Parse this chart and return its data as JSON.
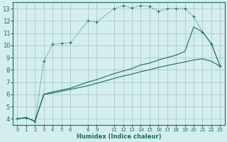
{
  "xlabel": "Humidex (Indice chaleur)",
  "bg_color": "#d4eded",
  "grid_color": "#aacaca",
  "line_color": "#1a6b6b",
  "xlim": [
    -0.5,
    23.5
  ],
  "ylim": [
    3.5,
    13.5
  ],
  "xticks": [
    0,
    1,
    2,
    3,
    4,
    5,
    6,
    8,
    9,
    11,
    12,
    13,
    14,
    15,
    16,
    17,
    18,
    19,
    20,
    21,
    22,
    23
  ],
  "yticks": [
    4,
    5,
    6,
    7,
    8,
    9,
    10,
    11,
    12,
    13
  ],
  "series1_x": [
    0,
    1,
    2,
    3,
    4,
    5,
    6,
    8,
    9,
    11,
    12,
    13,
    14,
    15,
    16,
    17,
    18,
    19,
    20,
    21,
    22,
    23
  ],
  "series1_y": [
    4.0,
    4.1,
    3.8,
    8.7,
    10.1,
    10.15,
    10.2,
    12.0,
    11.9,
    13.0,
    13.25,
    13.05,
    13.25,
    13.2,
    12.75,
    13.0,
    13.0,
    13.0,
    12.35,
    11.1,
    10.1,
    8.3
  ],
  "series2_x": [
    0,
    1,
    2,
    3,
    4,
    5,
    6,
    8,
    9,
    11,
    12,
    13,
    14,
    15,
    16,
    17,
    18,
    19,
    20,
    21,
    22,
    23
  ],
  "series2_y": [
    4.0,
    4.1,
    3.8,
    6.0,
    6.1,
    6.25,
    6.4,
    6.7,
    6.9,
    7.3,
    7.5,
    7.65,
    7.85,
    8.0,
    8.2,
    8.35,
    8.5,
    8.65,
    8.8,
    8.9,
    8.7,
    8.3
  ],
  "series3_x": [
    0,
    1,
    2,
    3,
    4,
    5,
    6,
    8,
    9,
    11,
    12,
    13,
    14,
    15,
    16,
    17,
    18,
    19,
    20,
    21,
    22,
    23
  ],
  "series3_y": [
    4.0,
    4.1,
    3.8,
    6.0,
    6.2,
    6.35,
    6.5,
    7.0,
    7.2,
    7.7,
    7.9,
    8.1,
    8.4,
    8.55,
    8.8,
    9.0,
    9.2,
    9.5,
    11.5,
    11.1,
    10.15,
    8.3
  ]
}
